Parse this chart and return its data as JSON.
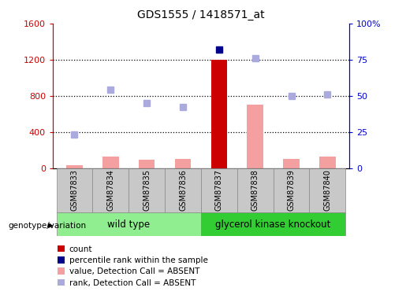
{
  "title": "GDS1555 / 1418571_at",
  "samples": [
    "GSM87833",
    "GSM87834",
    "GSM87835",
    "GSM87836",
    "GSM87837",
    "GSM87838",
    "GSM87839",
    "GSM87840"
  ],
  "groups": {
    "wild type": [
      0,
      1,
      2,
      3
    ],
    "glycerol kinase knockout": [
      4,
      5,
      6,
      7
    ]
  },
  "left_ylim": [
    0,
    1600
  ],
  "left_yticks": [
    0,
    400,
    800,
    1200,
    1600
  ],
  "right_ylim": [
    0,
    100
  ],
  "right_yticks": [
    0,
    25,
    50,
    75,
    100
  ],
  "bar_values": [
    30,
    130,
    90,
    100,
    1200,
    700,
    100,
    130
  ],
  "bar_color": "#f4a0a0",
  "special_bar_index": 4,
  "special_bar_color": "#cc0000",
  "rank_points": [
    370,
    870,
    720,
    680,
    1310,
    1220,
    800,
    820
  ],
  "rank_point_color_special": "#00008b",
  "rank_point_color_absent": "#aaaadd",
  "rank_point_special_index": 4,
  "left_axis_color": "#cc0000",
  "right_axis_color": "#0000cc",
  "wt_color": "#90ee90",
  "gk_color": "#32cd32",
  "legend_items": [
    {
      "label": "count",
      "color": "#cc0000"
    },
    {
      "label": "percentile rank within the sample",
      "color": "#00008b"
    },
    {
      "label": "value, Detection Call = ABSENT",
      "color": "#f4a0a0"
    },
    {
      "label": "rank, Detection Call = ABSENT",
      "color": "#aaaadd"
    }
  ],
  "genotype_label": "genotype/variation",
  "dotted_grid_values": [
    400,
    800,
    1200
  ],
  "label_gray": "#c8c8c8",
  "label_edge": "#888888"
}
